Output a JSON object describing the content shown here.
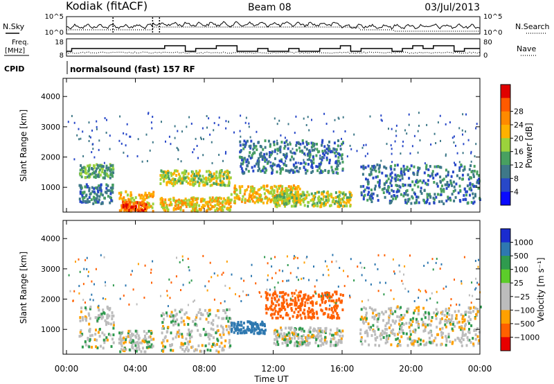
{
  "header": {
    "station": "Kodiak (fitACF)",
    "beam": "Beam 08",
    "date": "03/Jul/2013",
    "cpid_label": "CPID",
    "cpid_text": "normalsound (fast) 157 RF"
  },
  "top_panels": {
    "nsky_label": "N.Sky",
    "nsearch_label": "N.Search",
    "nsky_ticks": [
      "10^5",
      "10^0"
    ],
    "nsearch_ticks": [
      "10^5",
      "10^0"
    ],
    "freq_label_line1": "Freq.",
    "freq_label_line2": "[MHz]",
    "freq_ticks": [
      "18",
      "8"
    ],
    "nave_label": "Nave",
    "nave_ticks": [
      "80",
      "0"
    ]
  },
  "chart_data": [
    {
      "type": "heatmap",
      "panel": "power",
      "ylabel": "Slant Range [km]",
      "ylim": [
        180,
        4600
      ],
      "yticks": [
        "1000",
        "2000",
        "3000",
        "4000"
      ],
      "colorbar_label": "Power [dB]",
      "colorbar_ticks": [
        "4",
        "8",
        "12",
        "16",
        "20",
        "24",
        "28"
      ],
      "colorbar_colors": [
        "#0a0aff",
        "#2848c8",
        "#3e7888",
        "#48a060",
        "#9bd23c",
        "#ffb100",
        "#ff8a00",
        "#ff5a00",
        "#e00000"
      ],
      "regions": [
        {
          "t": [
            0.7,
            2.7
          ],
          "r": [
            1350,
            1800
          ],
          "level": 12
        },
        {
          "t": [
            0.7,
            2.7
          ],
          "r": [
            500,
            1150
          ],
          "level": 8
        },
        {
          "t": [
            3.0,
            5.0
          ],
          "r": [
            250,
            900
          ],
          "level": 20
        },
        {
          "t": [
            3.2,
            4.6
          ],
          "r": [
            250,
            550
          ],
          "level": 28
        },
        {
          "t": [
            5.0,
            9.5
          ],
          "r": [
            250,
            700
          ],
          "level": 20
        },
        {
          "t": [
            5.0,
            9.5
          ],
          "r": [
            1100,
            1600
          ],
          "level": 16
        },
        {
          "t": [
            9.5,
            13.5
          ],
          "r": [
            500,
            1100
          ],
          "level": 20
        },
        {
          "t": [
            10.0,
            16.0
          ],
          "r": [
            1500,
            2600
          ],
          "level": 8
        },
        {
          "t": [
            12.0,
            16.5
          ],
          "r": [
            400,
            900
          ],
          "level": 16
        },
        {
          "t": [
            17.0,
            24.0
          ],
          "r": [
            500,
            1800
          ],
          "level": 8
        }
      ],
      "gaps_hours": [
        [
          2.7,
          3.0
        ],
        [
          5.0,
          5.4
        ],
        [
          9.55,
          9.65
        ],
        [
          16.65,
          16.8
        ]
      ]
    },
    {
      "type": "heatmap",
      "panel": "velocity",
      "ylabel": "Slant Range [km]",
      "ylim": [
        180,
        4600
      ],
      "yticks": [
        "1000",
        "2000",
        "3000",
        "4000"
      ],
      "colorbar_label": "Velocity [m s⁻¹]",
      "colorbar_ticks": [
        "1000",
        "500",
        "100",
        "25",
        "−25",
        "−100",
        "−500",
        "−1000"
      ],
      "colorbar_colors": [
        "#1a2ccf",
        "#2e78b0",
        "#2f9a4e",
        "#5ccc2a",
        "#bcbcbc",
        "#bcbcbc",
        "#ffa000",
        "#ff6000",
        "#e80000"
      ],
      "regions": [
        {
          "t": [
            0.7,
            2.7
          ],
          "r": [
            400,
            1800
          ],
          "level": 0
        },
        {
          "t": [
            3.0,
            5.0
          ],
          "r": [
            300,
            1000
          ],
          "level": 0
        },
        {
          "t": [
            5.0,
            9.5
          ],
          "r": [
            300,
            1700
          ],
          "level": 0
        },
        {
          "t": [
            9.5,
            11.5
          ],
          "r": [
            900,
            1300
          ],
          "level": 150
        },
        {
          "t": [
            11.5,
            16.0
          ],
          "r": [
            1400,
            2300
          ],
          "level": -300
        },
        {
          "t": [
            12.0,
            16.0
          ],
          "r": [
            500,
            1100
          ],
          "level": 0
        },
        {
          "t": [
            17.0,
            24.0
          ],
          "r": [
            500,
            1800
          ],
          "level": 0
        }
      ],
      "gaps_hours": [
        [
          2.7,
          3.0
        ],
        [
          5.0,
          5.4
        ],
        [
          9.55,
          9.65
        ],
        [
          16.65,
          16.8
        ]
      ]
    }
  ],
  "x_axis": {
    "ticks": [
      "00:00",
      "04:00",
      "08:00",
      "12:00",
      "16:00",
      "20:00",
      "00:00"
    ],
    "label": "Time UT",
    "range_hours": [
      0,
      24
    ]
  }
}
